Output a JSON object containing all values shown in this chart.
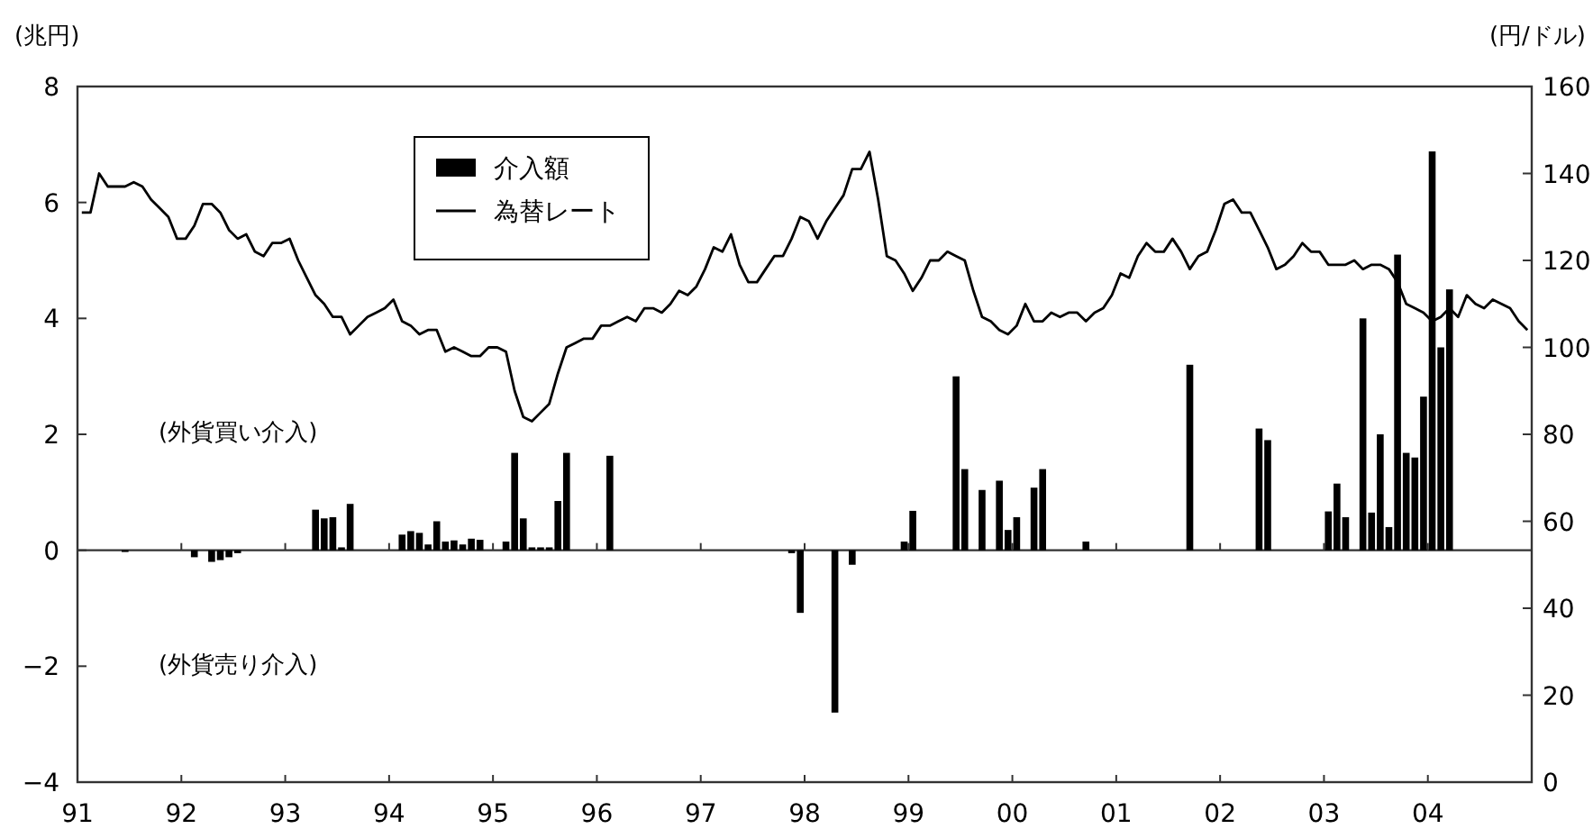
{
  "chart_data": {
    "type": "bar",
    "ylabel": "(兆円)",
    "y2label": "(円/ドル)",
    "xlim": [
      "1991-01",
      "2005-01"
    ],
    "xticks": [
      {
        "value": "1991-01",
        "label": "91"
      },
      {
        "value": "1992-01",
        "label": "92"
      },
      {
        "value": "1993-01",
        "label": "93"
      },
      {
        "value": "1994-01",
        "label": "94"
      },
      {
        "value": "1995-01",
        "label": "95"
      },
      {
        "value": "1996-01",
        "label": "96"
      },
      {
        "value": "1997-01",
        "label": "97"
      },
      {
        "value": "1998-01",
        "label": "98"
      },
      {
        "value": "1999-01",
        "label": "99"
      },
      {
        "value": "2000-01",
        "label": "00"
      },
      {
        "value": "2001-01",
        "label": "01"
      },
      {
        "value": "2002-01",
        "label": "02"
      },
      {
        "value": "2003-01",
        "label": "03"
      },
      {
        "value": "2004-01",
        "label": "04"
      }
    ],
    "ylim": [
      -4,
      8
    ],
    "yticks": [
      -4,
      -2,
      0,
      2,
      4,
      6,
      8
    ],
    "y2lim": [
      0,
      160
    ],
    "y2ticks": [
      0,
      20,
      40,
      60,
      80,
      100,
      120,
      140,
      160
    ],
    "legend": "top left",
    "marker": "none",
    "line_style": "solid",
    "annotations": [
      "(外貨買い介入)",
      "(外貨売り介入)"
    ],
    "series": [
      {
        "name": "介入額",
        "color": "#000000",
        "x": [
          "1991-06",
          "1992-02",
          "1992-04",
          "1992-05",
          "1992-06",
          "1992-07",
          "1993-04",
          "1993-05",
          "1993-06",
          "1993-07",
          "1993-08",
          "1994-02",
          "1994-03",
          "1994-04",
          "1994-05",
          "1994-06",
          "1994-07",
          "1994-08",
          "1994-09",
          "1994-10",
          "1994-11",
          "1995-02",
          "1995-03",
          "1995-04",
          "1995-05",
          "1995-06",
          "1995-07",
          "1995-08",
          "1995-09",
          "1996-02",
          "1997-11",
          "1997-12",
          "1998-04",
          "1998-06",
          "1998-12",
          "1999-01",
          "1999-06",
          "1999-07",
          "1999-09",
          "1999-11",
          "1999-12",
          "2000-01",
          "2000-03",
          "2000-04",
          "2000-09",
          "2001-09",
          "2002-05",
          "2002-06",
          "2003-01",
          "2003-02",
          "2003-03",
          "2003-05",
          "2003-06",
          "2003-07",
          "2003-08",
          "2003-09",
          "2003-10",
          "2003-11",
          "2003-12",
          "2004-01",
          "2004-02",
          "2004-03"
        ],
        "values": [
          -0.03,
          -0.12,
          -0.2,
          -0.17,
          -0.12,
          -0.05,
          0.7,
          0.55,
          0.57,
          0.05,
          0.8,
          0.27,
          0.33,
          0.3,
          0.1,
          0.5,
          0.15,
          0.17,
          0.1,
          0.2,
          0.18,
          0.15,
          1.68,
          0.55,
          0.05,
          0.05,
          0.05,
          0.85,
          1.68,
          1.63,
          -0.05,
          -1.08,
          -2.8,
          -0.25,
          0.15,
          0.68,
          3.0,
          1.4,
          1.04,
          1.2,
          0.35,
          0.57,
          1.08,
          1.4,
          0.15,
          3.2,
          2.1,
          1.9,
          0.67,
          1.15,
          0.57,
          4.0,
          0.65,
          2.0,
          0.4,
          5.1,
          1.68,
          1.6,
          2.65,
          6.88,
          3.5,
          4.5
        ]
      },
      {
        "name": "為替レート",
        "type": "line",
        "axis": "y2",
        "color": "#000000",
        "x": [
          "1991-01",
          "1991-02",
          "1991-03",
          "1991-04",
          "1991-05",
          "1991-06",
          "1991-07",
          "1991-08",
          "1991-09",
          "1991-10",
          "1991-11",
          "1991-12",
          "1992-01",
          "1992-02",
          "1992-03",
          "1992-04",
          "1992-05",
          "1992-06",
          "1992-07",
          "1992-08",
          "1992-09",
          "1992-10",
          "1992-11",
          "1992-12",
          "1993-01",
          "1993-02",
          "1993-03",
          "1993-04",
          "1993-05",
          "1993-06",
          "1993-07",
          "1993-08",
          "1993-09",
          "1993-10",
          "1993-11",
          "1993-12",
          "1994-01",
          "1994-02",
          "1994-03",
          "1994-04",
          "1994-05",
          "1994-06",
          "1994-07",
          "1994-08",
          "1994-09",
          "1994-10",
          "1994-11",
          "1994-12",
          "1995-01",
          "1995-02",
          "1995-03",
          "1995-04",
          "1995-05",
          "1995-06",
          "1995-07",
          "1995-08",
          "1995-09",
          "1995-10",
          "1995-11",
          "1995-12",
          "1996-01",
          "1996-02",
          "1996-03",
          "1996-04",
          "1996-05",
          "1996-06",
          "1996-07",
          "1996-08",
          "1996-09",
          "1996-10",
          "1996-11",
          "1996-12",
          "1997-01",
          "1997-02",
          "1997-03",
          "1997-04",
          "1997-05",
          "1997-06",
          "1997-07",
          "1997-08",
          "1997-09",
          "1997-10",
          "1997-11",
          "1997-12",
          "1998-01",
          "1998-02",
          "1998-03",
          "1998-04",
          "1998-05",
          "1998-06",
          "1998-07",
          "1998-08",
          "1998-09",
          "1998-10",
          "1998-11",
          "1998-12",
          "1999-01",
          "1999-02",
          "1999-03",
          "1999-04",
          "1999-05",
          "1999-06",
          "1999-07",
          "1999-08",
          "1999-09",
          "1999-10",
          "1999-11",
          "1999-12",
          "2000-01",
          "2000-02",
          "2000-03",
          "2000-04",
          "2000-05",
          "2000-06",
          "2000-07",
          "2000-08",
          "2000-09",
          "2000-10",
          "2000-11",
          "2000-12",
          "2001-01",
          "2001-02",
          "2001-03",
          "2001-04",
          "2001-05",
          "2001-06",
          "2001-07",
          "2001-08",
          "2001-09",
          "2001-10",
          "2001-11",
          "2001-12",
          "2002-01",
          "2002-02",
          "2002-03",
          "2002-04",
          "2002-05",
          "2002-06",
          "2002-07",
          "2002-08",
          "2002-09",
          "2002-10",
          "2002-11",
          "2002-12",
          "2003-01",
          "2003-02",
          "2003-03",
          "2003-04",
          "2003-05",
          "2003-06",
          "2003-07",
          "2003-08",
          "2003-09",
          "2003-10",
          "2003-11",
          "2003-12",
          "2004-01",
          "2004-02",
          "2004-03",
          "2004-04",
          "2004-05",
          "2004-06",
          "2004-07",
          "2004-08",
          "2004-09",
          "2004-10",
          "2004-11",
          "2004-12"
        ],
        "values": [
          131,
          131,
          140,
          137,
          137,
          137,
          138,
          137,
          134,
          132,
          130,
          125,
          125,
          128,
          133,
          133,
          131,
          127,
          125,
          126,
          122,
          121,
          124,
          124,
          125,
          120,
          116,
          112,
          110,
          107,
          107,
          103,
          105,
          107,
          108,
          109,
          111,
          106,
          105,
          103,
          104,
          104,
          99,
          100,
          99,
          98,
          98,
          100,
          100,
          99,
          90,
          84,
          83,
          85,
          87,
          94,
          100,
          101,
          102,
          102,
          105,
          105,
          106,
          107,
          106,
          109,
          109,
          108,
          110,
          113,
          112,
          114,
          118,
          123,
          122,
          126,
          119,
          115,
          115,
          118,
          121,
          121,
          125,
          130,
          129,
          125,
          129,
          132,
          135,
          141,
          141,
          145,
          134,
          121,
          120,
          117,
          113,
          116,
          120,
          120,
          122,
          121,
          120,
          113,
          107,
          106,
          104,
          103,
          105,
          110,
          106,
          106,
          108,
          107,
          108,
          108,
          106,
          108,
          109,
          112,
          117,
          116,
          121,
          124,
          122,
          122,
          125,
          122,
          118,
          121,
          122,
          127,
          133,
          134,
          131,
          131,
          127,
          123,
          118,
          119,
          121,
          124,
          122,
          122,
          119,
          119,
          119,
          120,
          118,
          119,
          119,
          118,
          115,
          110,
          109,
          108,
          106,
          107,
          109,
          107,
          112,
          110,
          109,
          111,
          110,
          109,
          106,
          104
        ]
      }
    ]
  }
}
